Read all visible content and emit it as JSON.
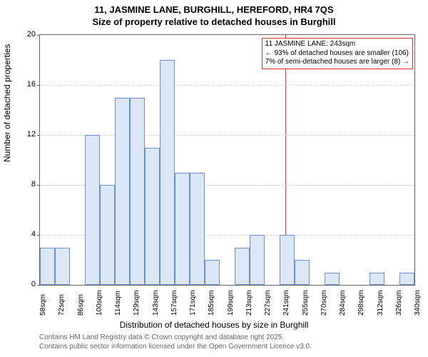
{
  "title": {
    "line1": "11, JASMINE LANE, BURGHILL, HEREFORD, HR4 7QS",
    "line2": "Size of property relative to detached houses in Burghill"
  },
  "chart": {
    "type": "histogram",
    "ylabel": "Number of detached properties",
    "xlabel": "Distribution of detached houses by size in Burghill",
    "ylim": [
      0,
      20
    ],
    "ytick_step": 4,
    "yticks": [
      0,
      4,
      8,
      12,
      16,
      20
    ],
    "xticks": [
      "58sqm",
      "72sqm",
      "86sqm",
      "100sqm",
      "114sqm",
      "129sqm",
      "143sqm",
      "157sqm",
      "171sqm",
      "185sqm",
      "199sqm",
      "213sqm",
      "227sqm",
      "241sqm",
      "255sqm",
      "270sqm",
      "284sqm",
      "298sqm",
      "312sqm",
      "326sqm",
      "340sqm"
    ],
    "values": [
      3,
      3,
      0,
      12,
      8,
      15,
      15,
      11,
      18,
      9,
      9,
      2,
      0,
      3,
      4,
      0,
      4,
      2,
      0,
      1,
      0,
      0,
      1,
      0,
      1
    ],
    "bar_fill": "#dbe6f7",
    "bar_stroke": "#6b8fcf",
    "grid_color": "#cccccc",
    "background_color": "#ffffff",
    "axis_color": "#666666",
    "label_fontsize": 12,
    "tick_fontsize": 11,
    "xtick_fontsize": 10
  },
  "annotation": {
    "line1": "11 JASMINE LANE: 243sqm",
    "line2": "← 93% of detached houses are smaller (106)",
    "line3": "7% of semi-detached houses are larger (8) →",
    "border_color": "#e03030",
    "marker_x_value": "243sqm"
  },
  "footer": {
    "line1": "Contains HM Land Registry data © Crown copyright and database right 2025.",
    "line2": "Contains public sector information licensed under the Open Government Licence v3.0.",
    "color": "#666666"
  }
}
